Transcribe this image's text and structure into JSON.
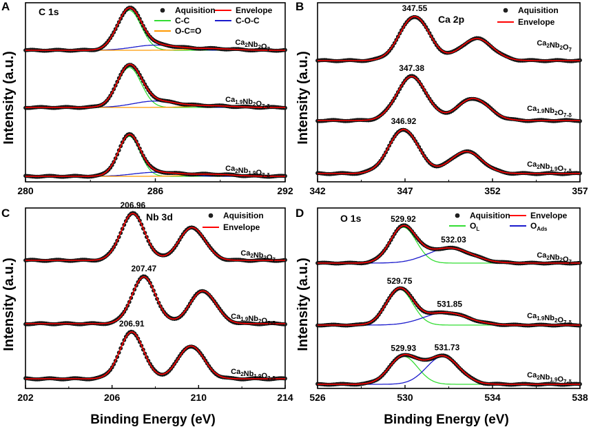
{
  "figure": {
    "x_axis_label": "Binding Energy (eV)",
    "y_axis_label": "Intensity (a.u.)"
  },
  "chart_data": [
    {
      "id": "A",
      "type": "line",
      "title": "C 1s",
      "xlim": [
        280,
        292
      ],
      "xticks": [
        "280",
        "286",
        "292"
      ],
      "xlabel": "",
      "ylabel": "Intensity (a.u.)",
      "legend": {
        "placement": "top-right",
        "entries": [
          "Aquisition",
          "Envelope",
          "C-C",
          "C-O-C",
          "O-C=O"
        ]
      },
      "series_colors": {
        "Aquisition": "#000000",
        "Envelope": "#ff0000",
        "C-C": "#33dd33",
        "C-O-C": "#1a1acc",
        "O-C=O": "#ff9900"
      },
      "samples": [
        {
          "label": "Ca2Nb2O7",
          "peaks": [
            {
              "center": 284.8,
              "height": 1.0,
              "width": 0.55,
              "component": "C-C"
            },
            {
              "center": 286.0,
              "height": 0.13,
              "width": 1.0,
              "component": "C-O-C"
            },
            {
              "center": 288.6,
              "height": 0.04,
              "width": 1.0,
              "component": "O-C=O"
            }
          ]
        },
        {
          "label": "Ca1.9Nb2O7-δ",
          "peaks": [
            {
              "center": 284.8,
              "height": 1.0,
              "width": 0.55,
              "component": "C-C"
            },
            {
              "center": 286.0,
              "height": 0.16,
              "width": 1.0,
              "component": "C-O-C"
            },
            {
              "center": 288.6,
              "height": 0.04,
              "width": 1.0,
              "component": "O-C=O"
            }
          ]
        },
        {
          "label": "Ca2Nb1.9O7-δ",
          "peaks": [
            {
              "center": 284.8,
              "height": 1.0,
              "width": 0.5,
              "component": "C-C"
            },
            {
              "center": 286.0,
              "height": 0.1,
              "width": 1.0,
              "component": "C-O-C"
            },
            {
              "center": 288.6,
              "height": 0.05,
              "width": 1.0,
              "component": "O-C=O"
            }
          ]
        }
      ]
    },
    {
      "id": "B",
      "type": "line",
      "title": "Ca 2p",
      "xlim": [
        342,
        357
      ],
      "xticks": [
        "342",
        "347",
        "352",
        "357"
      ],
      "legend": {
        "placement": "top-right",
        "entries": [
          "Aquisition",
          "Envelope"
        ]
      },
      "series_colors": {
        "Aquisition": "#000000",
        "Envelope": "#ff0000"
      },
      "samples": [
        {
          "label": "Ca2Nb2O7",
          "peak_label": "347.55",
          "peaks": [
            {
              "center": 347.55,
              "height": 1.0,
              "width": 0.85
            },
            {
              "center": 351.1,
              "height": 0.5,
              "width": 0.9
            }
          ]
        },
        {
          "label": "Ca1.9Nb2O7-δ",
          "peak_label": "347.38",
          "peaks": [
            {
              "center": 347.38,
              "height": 1.0,
              "width": 0.85
            },
            {
              "center": 350.9,
              "height": 0.5,
              "width": 0.9
            }
          ]
        },
        {
          "label": "Ca2Nb1.9O7-δ",
          "peak_label": "346.92",
          "peaks": [
            {
              "center": 346.92,
              "height": 1.0,
              "width": 0.85
            },
            {
              "center": 350.5,
              "height": 0.5,
              "width": 0.9
            }
          ]
        }
      ]
    },
    {
      "id": "C",
      "type": "line",
      "title": "Nb 3d",
      "xlim": [
        202,
        214
      ],
      "xticks": [
        "202",
        "206",
        "210",
        "214"
      ],
      "legend": {
        "placement": "top-right",
        "entries": [
          "Aquisition",
          "Envelope"
        ]
      },
      "series_colors": {
        "Aquisition": "#000000",
        "Envelope": "#ff0000"
      },
      "samples": [
        {
          "label": "Ca2Nb2O7",
          "peak_label": "206.96",
          "peaks": [
            {
              "center": 206.96,
              "height": 1.0,
              "width": 0.55
            },
            {
              "center": 209.7,
              "height": 0.7,
              "width": 0.6
            }
          ]
        },
        {
          "label": "Ca1.9Nb2O7-δ",
          "peak_label": "207.47",
          "peaks": [
            {
              "center": 207.47,
              "height": 1.0,
              "width": 0.55
            },
            {
              "center": 210.2,
              "height": 0.7,
              "width": 0.6
            }
          ]
        },
        {
          "label": "Ca2Nb1.9O7-δ",
          "peak_label": "206.91",
          "peaks": [
            {
              "center": 206.91,
              "height": 1.0,
              "width": 0.55
            },
            {
              "center": 209.65,
              "height": 0.7,
              "width": 0.6
            }
          ]
        }
      ]
    },
    {
      "id": "D",
      "type": "line",
      "title": "O 1s",
      "xlim": [
        526,
        538
      ],
      "xticks": [
        "526",
        "530",
        "534",
        "538"
      ],
      "legend": {
        "placement": "top-right",
        "entries": [
          "Aquisition",
          "Envelope",
          "OL",
          "OAds"
        ]
      },
      "series_colors": {
        "Aquisition": "#000000",
        "Envelope": "#ff0000",
        "OL": "#33dd33",
        "OAds": "#1a1acc"
      },
      "samples": [
        {
          "label": "Ca2Nb2O7",
          "peak_labels": [
            "529.92",
            "532.03"
          ],
          "peaks": [
            {
              "center": 529.92,
              "height": 1.0,
              "width": 0.6,
              "component": "OL"
            },
            {
              "center": 532.03,
              "height": 0.42,
              "width": 1.0,
              "component": "OAds"
            }
          ]
        },
        {
          "label": "Ca1.9Nb2O7-δ",
          "peak_labels": [
            "529.75",
            "531.85"
          ],
          "peaks": [
            {
              "center": 529.75,
              "height": 1.0,
              "width": 0.6,
              "component": "OL"
            },
            {
              "center": 531.85,
              "height": 0.35,
              "width": 1.0,
              "component": "OAds"
            }
          ]
        },
        {
          "label": "Ca2Nb1.9O7-δ",
          "peak_labels": [
            "529.93",
            "531.73"
          ],
          "peaks": [
            {
              "center": 529.93,
              "height": 0.78,
              "width": 0.65,
              "component": "OL"
            },
            {
              "center": 531.73,
              "height": 0.78,
              "width": 0.75,
              "component": "OAds"
            }
          ]
        }
      ]
    }
  ]
}
